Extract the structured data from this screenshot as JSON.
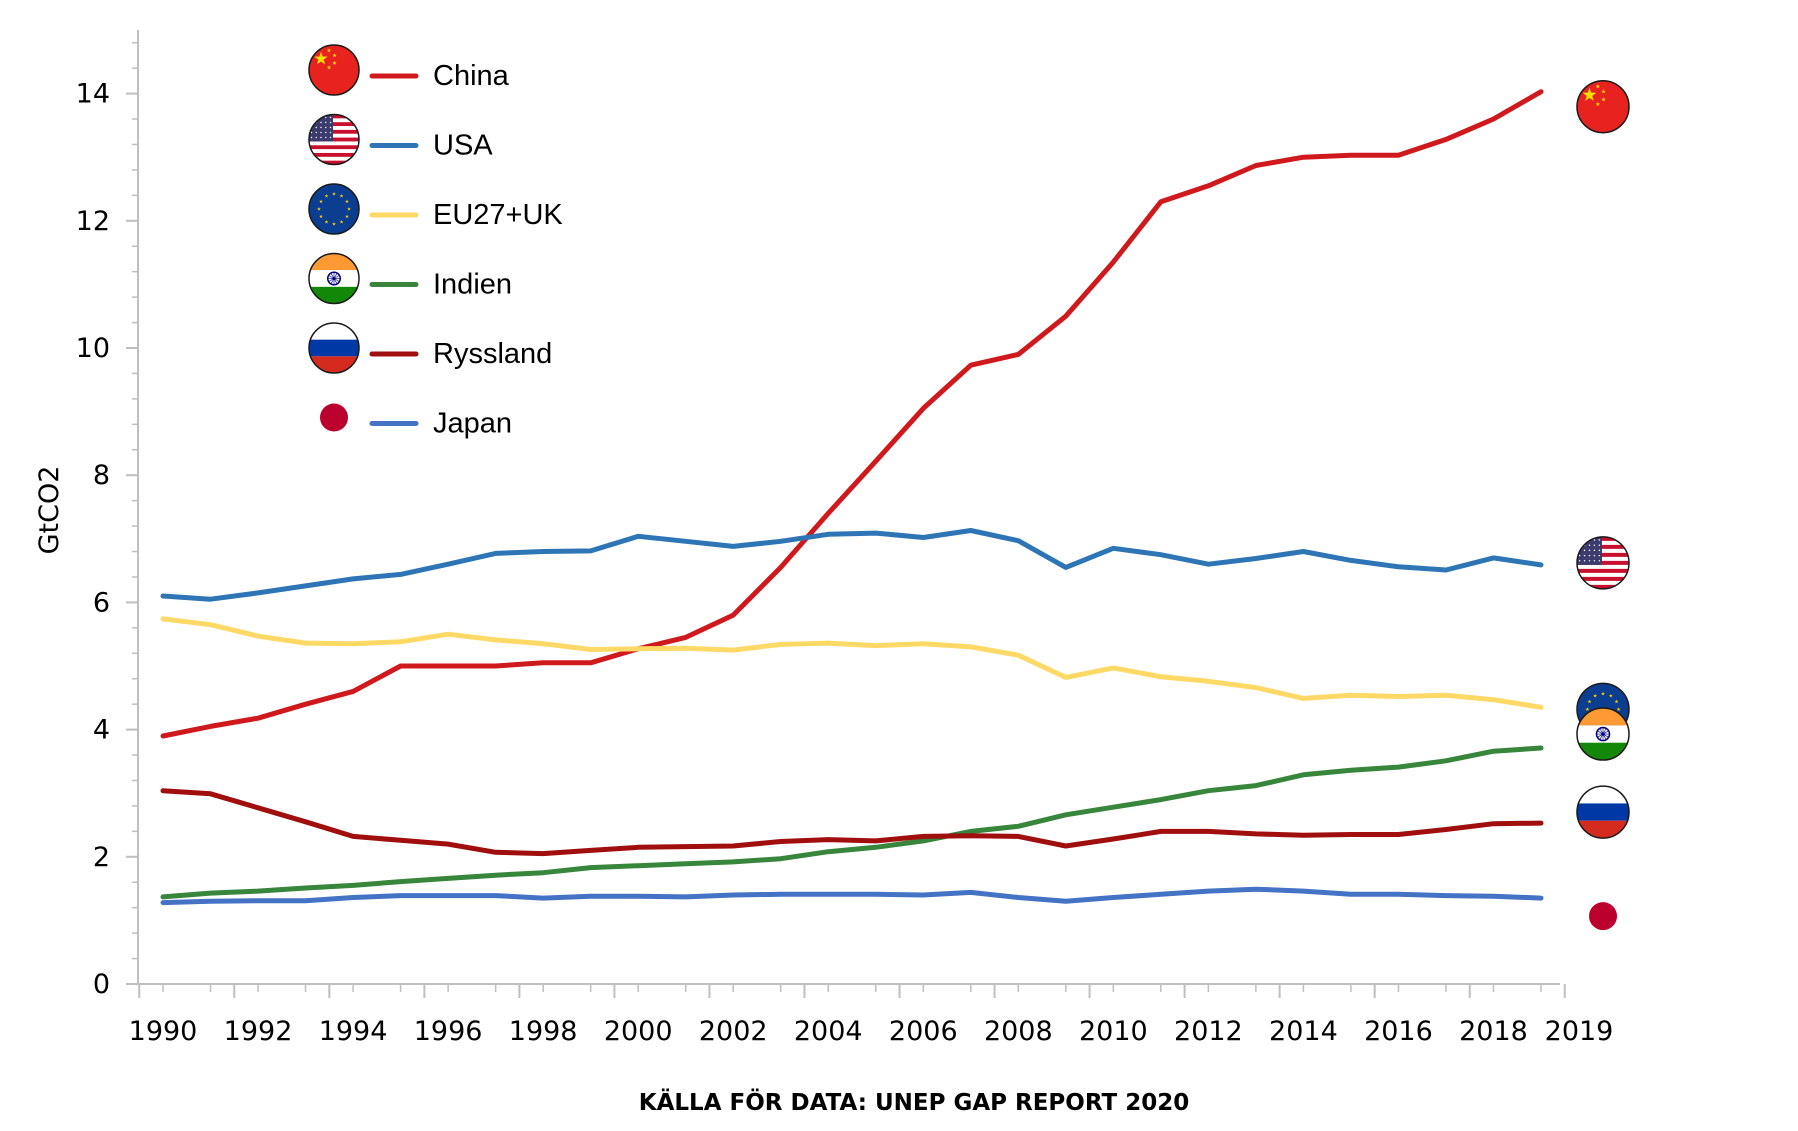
{
  "chart_data": {
    "type": "line",
    "title": "",
    "source_note": "KÄLLA FÖR DATA: UNEP GAP REPORT 2020",
    "xlabel": "",
    "ylabel": "GtCO2",
    "xlim": [
      1990,
      2019
    ],
    "ylim": [
      0,
      15
    ],
    "grid": false,
    "legend_position": "top-left",
    "x": [
      1990,
      1991,
      1992,
      1993,
      1994,
      1995,
      1996,
      1997,
      1998,
      1999,
      2000,
      2001,
      2002,
      2003,
      2004,
      2005,
      2006,
      2007,
      2008,
      2009,
      2010,
      2011,
      2012,
      2013,
      2014,
      2015,
      2016,
      2017,
      2018,
      2019
    ],
    "x_tick_labels": [
      "1990",
      "1992",
      "1994",
      "1996",
      "1998",
      "2000",
      "2002",
      "2004",
      "2006",
      "2008",
      "2010",
      "2012",
      "2014",
      "2016",
      "2018",
      "2019"
    ],
    "y_tick_labels": [
      "0",
      "2",
      "4",
      "6",
      "8",
      "10",
      "12",
      "14"
    ],
    "series": [
      {
        "name": "China",
        "color": "#d0191c",
        "flag": "china-flag",
        "values": [
          3.9,
          4.05,
          4.18,
          4.4,
          4.6,
          5.0,
          5.0,
          5.0,
          5.05,
          5.05,
          5.27,
          5.45,
          5.8,
          6.55,
          7.4,
          8.22,
          9.05,
          9.73,
          9.9,
          10.5,
          11.35,
          12.3,
          12.55,
          12.87,
          13.0,
          13.03,
          13.03,
          13.28,
          13.6,
          14.03
        ]
      },
      {
        "name": "USA",
        "color": "#2e75b6",
        "flag": "usa-flag",
        "values": [
          6.1,
          6.05,
          6.15,
          6.26,
          6.37,
          6.44,
          6.6,
          6.77,
          6.8,
          6.81,
          7.04,
          6.96,
          6.88,
          6.96,
          7.07,
          7.09,
          7.02,
          7.13,
          6.97,
          6.55,
          6.85,
          6.75,
          6.6,
          6.69,
          6.8,
          6.66,
          6.56,
          6.51,
          6.7,
          6.59
        ]
      },
      {
        "name": "EU27+UK",
        "color": "#ffd966",
        "flag": "eu-flag",
        "values": [
          5.74,
          5.65,
          5.47,
          5.36,
          5.35,
          5.38,
          5.5,
          5.41,
          5.35,
          5.26,
          5.27,
          5.28,
          5.25,
          5.34,
          5.36,
          5.32,
          5.35,
          5.3,
          5.17,
          4.82,
          4.97,
          4.83,
          4.76,
          4.66,
          4.49,
          4.54,
          4.52,
          4.54,
          4.47,
          4.35
        ]
      },
      {
        "name": "Indien",
        "color": "#37863b",
        "flag": "india-flag",
        "values": [
          1.37,
          1.43,
          1.46,
          1.51,
          1.55,
          1.61,
          1.66,
          1.71,
          1.75,
          1.83,
          1.86,
          1.89,
          1.92,
          1.97,
          2.08,
          2.15,
          2.25,
          2.4,
          2.48,
          2.66,
          2.78,
          2.9,
          3.04,
          3.12,
          3.29,
          3.36,
          3.41,
          3.51,
          3.66,
          3.71
        ]
      },
      {
        "name": "Ryssland",
        "color": "#a00e0e",
        "flag": "russia-flag",
        "values": [
          3.04,
          2.99,
          2.77,
          2.55,
          2.32,
          2.26,
          2.2,
          2.07,
          2.05,
          2.1,
          2.15,
          2.16,
          2.17,
          2.24,
          2.27,
          2.25,
          2.32,
          2.33,
          2.32,
          2.17,
          2.28,
          2.4,
          2.4,
          2.36,
          2.34,
          2.35,
          2.35,
          2.43,
          2.52,
          2.53
        ]
      },
      {
        "name": "Japan",
        "color": "#4472c4",
        "flag": "japan-flag",
        "values": [
          1.28,
          1.3,
          1.31,
          1.31,
          1.36,
          1.39,
          1.39,
          1.39,
          1.35,
          1.38,
          1.38,
          1.37,
          1.4,
          1.41,
          1.41,
          1.41,
          1.4,
          1.44,
          1.36,
          1.3,
          1.36,
          1.41,
          1.46,
          1.49,
          1.46,
          1.41,
          1.41,
          1.39,
          1.38,
          1.35
        ]
      }
    ],
    "flag_colors": {
      "china_red": "#e8231f",
      "china_star": "#ffde00",
      "usa_red": "#c8102e",
      "usa_blue": "#3c3b6e",
      "white": "#ffffff",
      "eu_blue": "#0b3d91",
      "eu_star": "#ffcc00",
      "india_saffron": "#ff9933",
      "india_green": "#138808",
      "india_wheel": "#000080",
      "russia_white": "#ffffff",
      "russia_blue": "#0039a6",
      "russia_red": "#d52b1e",
      "japan_red": "#bc002d"
    }
  }
}
